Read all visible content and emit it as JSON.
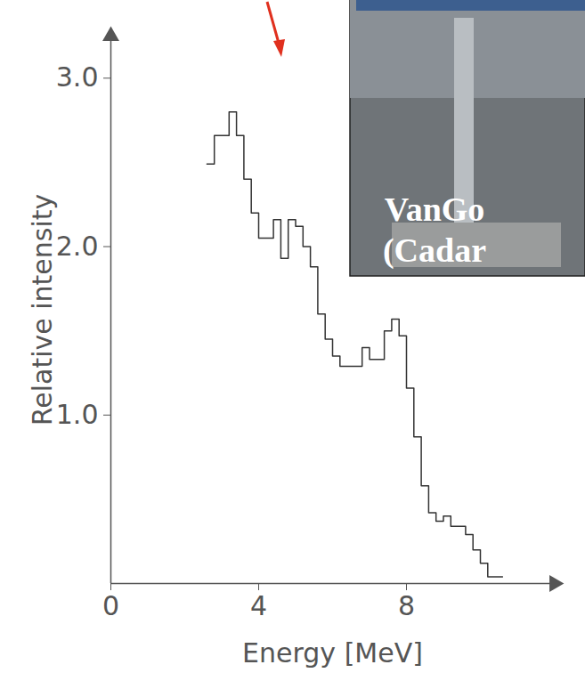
{
  "chart_data": {
    "type": "histogram",
    "xlabel": "Energy [MeV]",
    "ylabel": "Relative intensity",
    "bins": [
      2.6,
      2.8,
      3.0,
      3.2,
      3.4,
      3.6,
      3.8,
      4.0,
      4.2,
      4.4,
      4.6,
      4.8,
      5.0,
      5.2,
      5.4,
      5.6,
      5.8,
      6.0,
      6.2,
      6.4,
      6.6,
      6.8,
      7.0,
      7.2,
      7.4,
      7.6,
      7.8,
      8.0,
      8.2,
      8.4,
      8.6,
      8.8,
      9.0,
      9.2,
      9.4,
      9.6,
      9.8,
      10.0,
      10.2,
      10.4,
      10.6
    ],
    "values": [
      2.49,
      2.66,
      2.66,
      2.8,
      2.66,
      2.4,
      2.2,
      2.05,
      2.05,
      2.16,
      1.93,
      2.16,
      2.12,
      2.0,
      1.88,
      1.6,
      1.45,
      1.35,
      1.29,
      1.29,
      1.29,
      1.4,
      1.33,
      1.33,
      1.5,
      1.57,
      1.47,
      1.16,
      0.87,
      0.58,
      0.42,
      0.37,
      0.4,
      0.34,
      0.34,
      0.29,
      0.2,
      0.12,
      0.04,
      0.04
    ],
    "color": "#333333",
    "xlim": [
      0,
      12
    ],
    "ylim": [
      0,
      3.25
    ],
    "xticks": [
      0,
      4,
      8
    ],
    "yticks": [
      1,
      2,
      3
    ],
    "grid": false,
    "annotations": [
      "VanGo",
      "(Cadar"
    ]
  }
}
